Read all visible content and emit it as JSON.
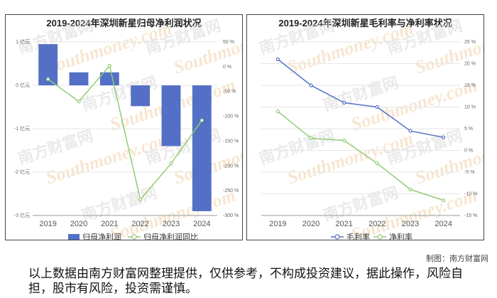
{
  "watermark": {
    "cn": "南方财富网",
    "en": "Southmoney.com"
  },
  "chart_data": [
    {
      "type": "bar",
      "title": "2019-2024年深圳新星归母净利润状况",
      "categories": [
        "2019",
        "2020",
        "2021",
        "2022",
        "2023",
        "2024"
      ],
      "series": [
        {
          "name": "归母净利润",
          "axis": "left",
          "type": "bar",
          "color": "#5470c6",
          "values": [
            0.95,
            0.3,
            0.3,
            -0.48,
            -1.4,
            -2.9
          ]
        },
        {
          "name": "归母净利润同比",
          "axis": "right",
          "type": "line",
          "color": "#91cc75",
          "values": [
            -25,
            -70,
            2,
            -268,
            -195,
            -108
          ]
        }
      ],
      "y_left": {
        "ticks": [
          1,
          0,
          -1,
          -2,
          -3
        ],
        "tick_labels": [
          "1 亿元",
          "0 亿元",
          "-1 亿元",
          "-2 亿元",
          "-3 亿元"
        ],
        "range": [
          -3,
          1
        ]
      },
      "y_right": {
        "ticks": [
          50,
          0,
          -50,
          -100,
          -150,
          -200,
          -250,
          -300
        ],
        "tick_labels": [
          "50 %",
          "0 %",
          "-50 %",
          "-100 %",
          "-150 %",
          "-200 %",
          "-250 %",
          "-300 %"
        ],
        "range": [
          -300,
          50
        ]
      },
      "legend": "bottom-center"
    },
    {
      "type": "line",
      "title": "2019-2024年深圳新星毛利率与净利率状况",
      "categories": [
        "2019",
        "2020",
        "2021",
        "2022",
        "2023",
        "2024"
      ],
      "series": [
        {
          "name": "毛利率",
          "color": "#5470c6",
          "values": [
            21,
            15,
            11,
            10,
            4.5,
            3
          ]
        },
        {
          "name": "净利率",
          "color": "#91cc75",
          "values": [
            9,
            2.8,
            2.3,
            -3,
            -9,
            -11.5
          ]
        }
      ],
      "y_right": {
        "ticks": [
          25,
          20,
          15,
          10,
          5,
          0,
          -5,
          -10,
          -15
        ],
        "tick_labels": [
          "25 %",
          "20 %",
          "15 %",
          "10 %",
          "5 %",
          "0 %",
          "-5 %",
          "-10 %",
          "-15 %"
        ],
        "range": [
          -15,
          25
        ]
      },
      "legend": "bottom-center"
    }
  ],
  "footer": {
    "credit": "制图：南方财富网",
    "disclaimer": "以上数据由南方财富网整理提供，仅供参考，不构成投资建议，据此操作，风险自担，股市有风险，投资需谨慎。"
  }
}
